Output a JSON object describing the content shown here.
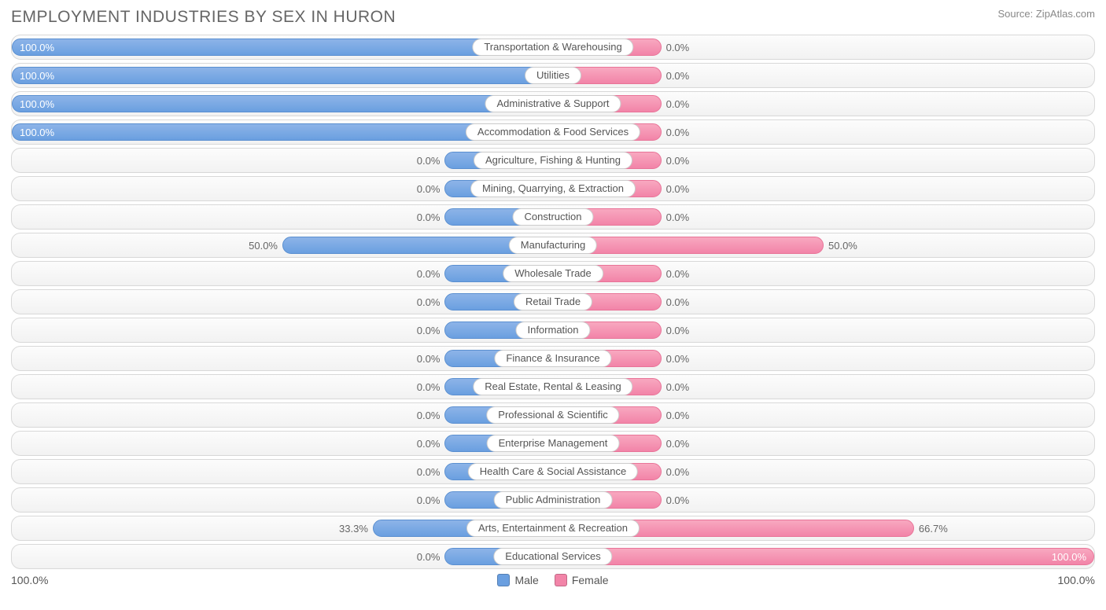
{
  "header": {
    "title": "EMPLOYMENT INDUSTRIES BY SEX IN HURON",
    "source_prefix": "Source: ",
    "source": "ZipAtlas.com"
  },
  "chart": {
    "type": "diverging-bar",
    "axis_left": "100.0%",
    "axis_right": "100.0%",
    "legend": [
      {
        "label": "Male",
        "color": "#6a9fe0"
      },
      {
        "label": "Female",
        "color": "#f284a8"
      }
    ],
    "colors": {
      "male_bar": "#6a9fe0",
      "female_bar": "#f284a8",
      "row_border": "#d8d8d8",
      "text": "#555555",
      "title_text": "#666666"
    },
    "stub_pct": 20,
    "rows": [
      {
        "label": "Transportation & Warehousing",
        "male_pct": 100.0,
        "female_pct": 0.0,
        "male_text": "100.0%",
        "female_text": "0.0%"
      },
      {
        "label": "Utilities",
        "male_pct": 100.0,
        "female_pct": 0.0,
        "male_text": "100.0%",
        "female_text": "0.0%"
      },
      {
        "label": "Administrative & Support",
        "male_pct": 100.0,
        "female_pct": 0.0,
        "male_text": "100.0%",
        "female_text": "0.0%"
      },
      {
        "label": "Accommodation & Food Services",
        "male_pct": 100.0,
        "female_pct": 0.0,
        "male_text": "100.0%",
        "female_text": "0.0%"
      },
      {
        "label": "Agriculture, Fishing & Hunting",
        "male_pct": 0.0,
        "female_pct": 0.0,
        "male_text": "0.0%",
        "female_text": "0.0%"
      },
      {
        "label": "Mining, Quarrying, & Extraction",
        "male_pct": 0.0,
        "female_pct": 0.0,
        "male_text": "0.0%",
        "female_text": "0.0%"
      },
      {
        "label": "Construction",
        "male_pct": 0.0,
        "female_pct": 0.0,
        "male_text": "0.0%",
        "female_text": "0.0%"
      },
      {
        "label": "Manufacturing",
        "male_pct": 50.0,
        "female_pct": 50.0,
        "male_text": "50.0%",
        "female_text": "50.0%"
      },
      {
        "label": "Wholesale Trade",
        "male_pct": 0.0,
        "female_pct": 0.0,
        "male_text": "0.0%",
        "female_text": "0.0%"
      },
      {
        "label": "Retail Trade",
        "male_pct": 0.0,
        "female_pct": 0.0,
        "male_text": "0.0%",
        "female_text": "0.0%"
      },
      {
        "label": "Information",
        "male_pct": 0.0,
        "female_pct": 0.0,
        "male_text": "0.0%",
        "female_text": "0.0%"
      },
      {
        "label": "Finance & Insurance",
        "male_pct": 0.0,
        "female_pct": 0.0,
        "male_text": "0.0%",
        "female_text": "0.0%"
      },
      {
        "label": "Real Estate, Rental & Leasing",
        "male_pct": 0.0,
        "female_pct": 0.0,
        "male_text": "0.0%",
        "female_text": "0.0%"
      },
      {
        "label": "Professional & Scientific",
        "male_pct": 0.0,
        "female_pct": 0.0,
        "male_text": "0.0%",
        "female_text": "0.0%"
      },
      {
        "label": "Enterprise Management",
        "male_pct": 0.0,
        "female_pct": 0.0,
        "male_text": "0.0%",
        "female_text": "0.0%"
      },
      {
        "label": "Health Care & Social Assistance",
        "male_pct": 0.0,
        "female_pct": 0.0,
        "male_text": "0.0%",
        "female_text": "0.0%"
      },
      {
        "label": "Public Administration",
        "male_pct": 0.0,
        "female_pct": 0.0,
        "male_text": "0.0%",
        "female_text": "0.0%"
      },
      {
        "label": "Arts, Entertainment & Recreation",
        "male_pct": 33.3,
        "female_pct": 66.7,
        "male_text": "33.3%",
        "female_text": "66.7%"
      },
      {
        "label": "Educational Services",
        "male_pct": 0.0,
        "female_pct": 100.0,
        "male_text": "0.0%",
        "female_text": "100.0%"
      }
    ]
  }
}
